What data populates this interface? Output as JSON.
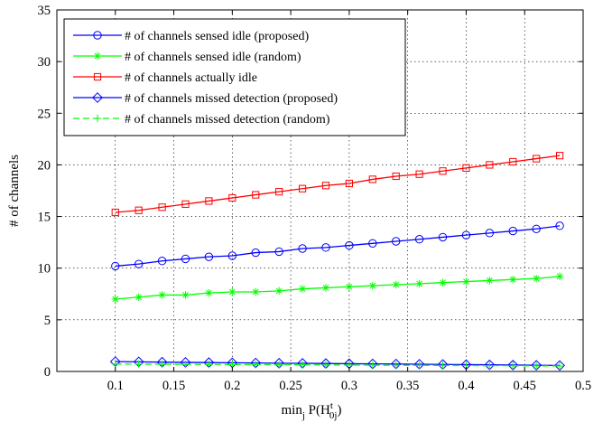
{
  "chart_data": {
    "type": "line",
    "title": "",
    "xlabel": {
      "main": "min",
      "sub": "j",
      "func": " P(H",
      "sup": "t",
      "sub2": "0j",
      "close": ")"
    },
    "ylabel": "# of channels",
    "xlim": [
      0.05,
      0.5
    ],
    "ylim": [
      0,
      35
    ],
    "xticks": [
      "0.1",
      "0.15",
      "0.2",
      "0.25",
      "0.3",
      "0.35",
      "0.4",
      "0.45",
      "0.5"
    ],
    "yticks": [
      "0",
      "5",
      "10",
      "15",
      "20",
      "25",
      "30",
      "35"
    ],
    "grid": true,
    "legend_position": "top-left",
    "x": [
      0.1,
      0.12,
      0.14,
      0.16,
      0.18,
      0.2,
      0.22,
      0.24,
      0.26,
      0.28,
      0.3,
      0.32,
      0.34,
      0.36,
      0.38,
      0.4,
      0.42,
      0.44,
      0.46,
      0.48
    ],
    "series": [
      {
        "name": "# of channels sensed idle (proposed)",
        "color": "#0000ff",
        "marker": "circle",
        "dash": "solid",
        "values": [
          10.2,
          10.4,
          10.7,
          10.9,
          11.1,
          11.2,
          11.5,
          11.6,
          11.9,
          12.0,
          12.2,
          12.4,
          12.6,
          12.8,
          13.0,
          13.2,
          13.4,
          13.6,
          13.8,
          14.1
        ]
      },
      {
        "name": "# of channels sensed idle (random)",
        "color": "#00ff00",
        "marker": "star",
        "dash": "solid",
        "values": [
          7.0,
          7.2,
          7.4,
          7.4,
          7.6,
          7.7,
          7.7,
          7.8,
          8.0,
          8.1,
          8.2,
          8.3,
          8.4,
          8.5,
          8.6,
          8.7,
          8.8,
          8.9,
          9.0,
          9.2
        ]
      },
      {
        "name": "# of channels actually idle",
        "color": "#ff0000",
        "marker": "square",
        "dash": "solid",
        "values": [
          15.4,
          15.6,
          15.9,
          16.2,
          16.5,
          16.8,
          17.1,
          17.4,
          17.7,
          18.0,
          18.2,
          18.6,
          18.9,
          19.1,
          19.4,
          19.7,
          20.0,
          20.3,
          20.6,
          20.9
        ]
      },
      {
        "name": "# of channels missed detection (proposed)",
        "color": "#0000ff",
        "marker": "diamond",
        "dash": "solid",
        "values": [
          0.95,
          0.93,
          0.9,
          0.88,
          0.86,
          0.84,
          0.82,
          0.8,
          0.79,
          0.77,
          0.75,
          0.73,
          0.72,
          0.7,
          0.68,
          0.66,
          0.64,
          0.62,
          0.6,
          0.58
        ]
      },
      {
        "name": "# of channels missed detection (random)",
        "color": "#00ff00",
        "marker": "plus",
        "dash": "dashed",
        "values": [
          0.72,
          0.71,
          0.7,
          0.69,
          0.68,
          0.67,
          0.66,
          0.65,
          0.64,
          0.63,
          0.62,
          0.61,
          0.6,
          0.59,
          0.58,
          0.57,
          0.56,
          0.55,
          0.54,
          0.53
        ]
      }
    ]
  }
}
